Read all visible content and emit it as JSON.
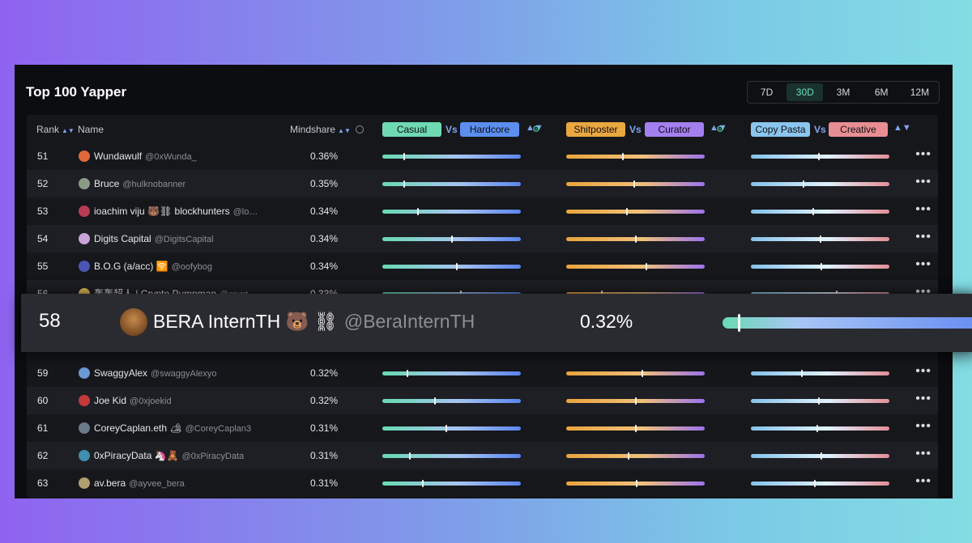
{
  "title": "Top 100 Yapper",
  "ranges": [
    "7D",
    "30D",
    "3M",
    "6M",
    "12M"
  ],
  "active_range": "30D",
  "headers": {
    "rank": "Rank",
    "name": "Name",
    "mindshare": "Mindshare"
  },
  "pairs": [
    {
      "a": "Casual",
      "b": "Hardcore",
      "vs": "Vs",
      "a_color": "#6fd9b4",
      "b_color": "#5c8ef0"
    },
    {
      "a": "Shitposter",
      "b": "Curator",
      "vs": "Vs",
      "a_color": "#e9a740",
      "b_color": "#a47ff0"
    },
    {
      "a": "Copy Pasta",
      "b": "Creative",
      "vs": "Vs",
      "a_color": "#8ac6ee",
      "b_color": "#e88e93"
    }
  ],
  "rows": [
    {
      "rank": "51",
      "name": "Wundawulf",
      "handle": "@0xWunda_",
      "mindshare": "0.36%",
      "scores": [
        0.16,
        0.41,
        0.49
      ],
      "avatar_color": "#e0683a"
    },
    {
      "rank": "52",
      "name": "Bruce",
      "handle": "@hulknobanner",
      "mindshare": "0.35%",
      "scores": [
        0.16,
        0.49,
        0.38
      ],
      "avatar_color": "#8a9a86"
    },
    {
      "rank": "53",
      "name": "ioachim viju 🐻⛓ blockhunters",
      "handle": "@lo…",
      "mindshare": "0.34%",
      "scores": [
        0.26,
        0.44,
        0.45
      ],
      "avatar_color": "#b93b55"
    },
    {
      "rank": "54",
      "name": "Digits Capital",
      "handle": "@DigitsCapital",
      "mindshare": "0.34%",
      "scores": [
        0.5,
        0.5,
        0.5
      ],
      "avatar_color": "#c9a3d8"
    },
    {
      "rank": "55",
      "name": "B.O.G (a/acc) 🛜",
      "handle": "@oofybog",
      "mindshare": "0.34%",
      "scores": [
        0.54,
        0.58,
        0.51
      ],
      "avatar_color": "#4d55b5"
    },
    {
      "rank": "56",
      "name": "轰轰超人 | Crypto Pumpman",
      "handle": "@crypt…",
      "mindshare": "0.33%",
      "scores": [
        0.57,
        0.26,
        0.62
      ],
      "avatar_color": "#e8c25a"
    },
    {
      "rank": "59",
      "name": "SwaggyAlex",
      "handle": "@swaggyAlexyo",
      "mindshare": "0.32%",
      "scores": [
        0.18,
        0.55,
        0.37
      ],
      "avatar_color": "#6d9ad6"
    },
    {
      "rank": "60",
      "name": "Joe Kid",
      "handle": "@0xjoekid",
      "mindshare": "0.32%",
      "scores": [
        0.38,
        0.5,
        0.49
      ],
      "avatar_color": "#c23a3a"
    },
    {
      "rank": "61",
      "name": "CoreyCaplan.eth 🏕",
      "handle": "@CoreyCaplan3",
      "mindshare": "0.31%",
      "scores": [
        0.46,
        0.5,
        0.48
      ],
      "avatar_color": "#6b7a8a"
    },
    {
      "rank": "62",
      "name": "0xPiracyData 🦄🧸",
      "handle": "@0xPiracyData",
      "mindshare": "0.31%",
      "scores": [
        0.2,
        0.45,
        0.51
      ],
      "avatar_color": "#3f8fb0"
    },
    {
      "rank": "63",
      "name": "av.bera",
      "handle": "@ayvee_bera",
      "mindshare": "0.31%",
      "scores": [
        0.29,
        0.51,
        0.46
      ],
      "avatar_color": "#b0a070"
    }
  ],
  "highlight": {
    "rank": "58",
    "name": "BERA InternTH 🐻 ⛓",
    "handle": "@BeraInternTH",
    "mindshare": "0.32%",
    "score": 0.06
  }
}
